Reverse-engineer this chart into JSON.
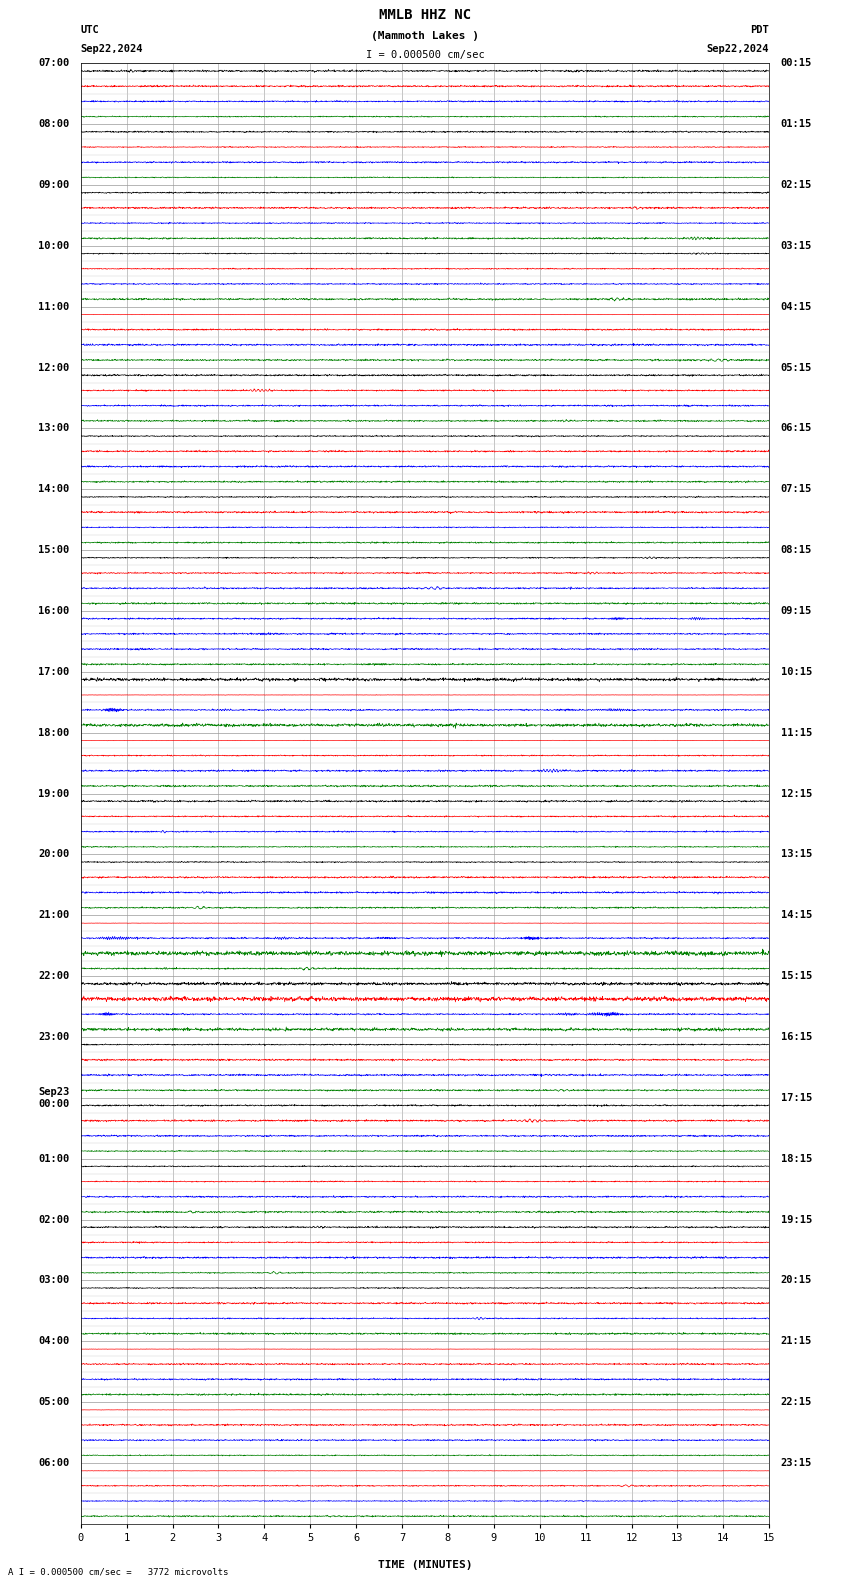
{
  "title_line1": "MMLB HHZ NC",
  "title_line2": "(Mammoth Lakes )",
  "scale_label": "I = 0.000500 cm/sec",
  "bottom_label": "A I = 0.000500 cm/sec =   3772 microvolts",
  "utc_label": "UTC",
  "utc_date": "Sep22,2024",
  "pdt_label": "PDT",
  "pdt_date": "Sep22,2024",
  "xlabel": "TIME (MINUTES)",
  "xticks": [
    0,
    1,
    2,
    3,
    4,
    5,
    6,
    7,
    8,
    9,
    10,
    11,
    12,
    13,
    14,
    15
  ],
  "left_labels": [
    "07:00",
    "08:00",
    "09:00",
    "10:00",
    "11:00",
    "12:00",
    "13:00",
    "14:00",
    "15:00",
    "16:00",
    "17:00",
    "18:00",
    "19:00",
    "20:00",
    "21:00",
    "22:00",
    "23:00",
    "Sep23\n00:00",
    "01:00",
    "02:00",
    "03:00",
    "04:00",
    "05:00",
    "06:00"
  ],
  "right_labels": [
    "00:15",
    "01:15",
    "02:15",
    "03:15",
    "04:15",
    "05:15",
    "06:15",
    "07:15",
    "08:15",
    "09:15",
    "10:15",
    "11:15",
    "12:15",
    "13:15",
    "14:15",
    "15:15",
    "16:15",
    "17:15",
    "18:15",
    "19:15",
    "20:15",
    "21:15",
    "22:15",
    "23:15"
  ],
  "num_hour_blocks": 24,
  "rows_per_block": 4,
  "colors_pattern": [
    "black",
    "red",
    "blue",
    "green"
  ],
  "bg_color": "white",
  "grid_major_color": "#999999",
  "grid_minor_color": "#cccccc",
  "noise_base": 0.018,
  "title_fontsize": 10,
  "label_fontsize": 7.5,
  "tick_fontsize": 7.5,
  "figsize": [
    8.5,
    15.84
  ],
  "dpi": 100,
  "special_active": {
    "36": {
      "color": "blue",
      "amp": 4.0,
      "burst": true
    },
    "37": {
      "color": "blue",
      "amp": 3.5,
      "burst": true
    },
    "38": {
      "color": "blue",
      "amp": 3.0,
      "burst": true
    },
    "39": {
      "color": "green",
      "amp": 2.5,
      "burst": true
    },
    "40": {
      "color": "black",
      "amp": 2.0
    },
    "41": {
      "color": "red",
      "amp": 6.0,
      "full": true
    },
    "42": {
      "color": "blue",
      "amp": 5.0,
      "burst": true
    },
    "43": {
      "color": "green",
      "amp": 2.0
    },
    "56": {
      "color": "red",
      "amp": 6.0,
      "full": true
    },
    "57": {
      "color": "blue",
      "amp": 5.0,
      "burst": true
    },
    "58": {
      "color": "green",
      "amp": 3.0
    },
    "60": {
      "color": "black",
      "amp": 2.0
    },
    "61": {
      "color": "red",
      "amp": 3.0
    },
    "62": {
      "color": "blue",
      "amp": 5.0,
      "burst": true
    },
    "63": {
      "color": "green",
      "amp": 2.0
    },
    "84": {
      "color": "red",
      "amp": 6.0,
      "full": true
    },
    "92": {
      "color": "red",
      "amp": 6.0,
      "full": true
    },
    "16": {
      "color": "red",
      "amp": 4.0,
      "full": true
    },
    "44": {
      "color": "red",
      "amp": 4.0,
      "full": true
    },
    "88": {
      "color": "red",
      "amp": 4.0,
      "full": true
    }
  }
}
